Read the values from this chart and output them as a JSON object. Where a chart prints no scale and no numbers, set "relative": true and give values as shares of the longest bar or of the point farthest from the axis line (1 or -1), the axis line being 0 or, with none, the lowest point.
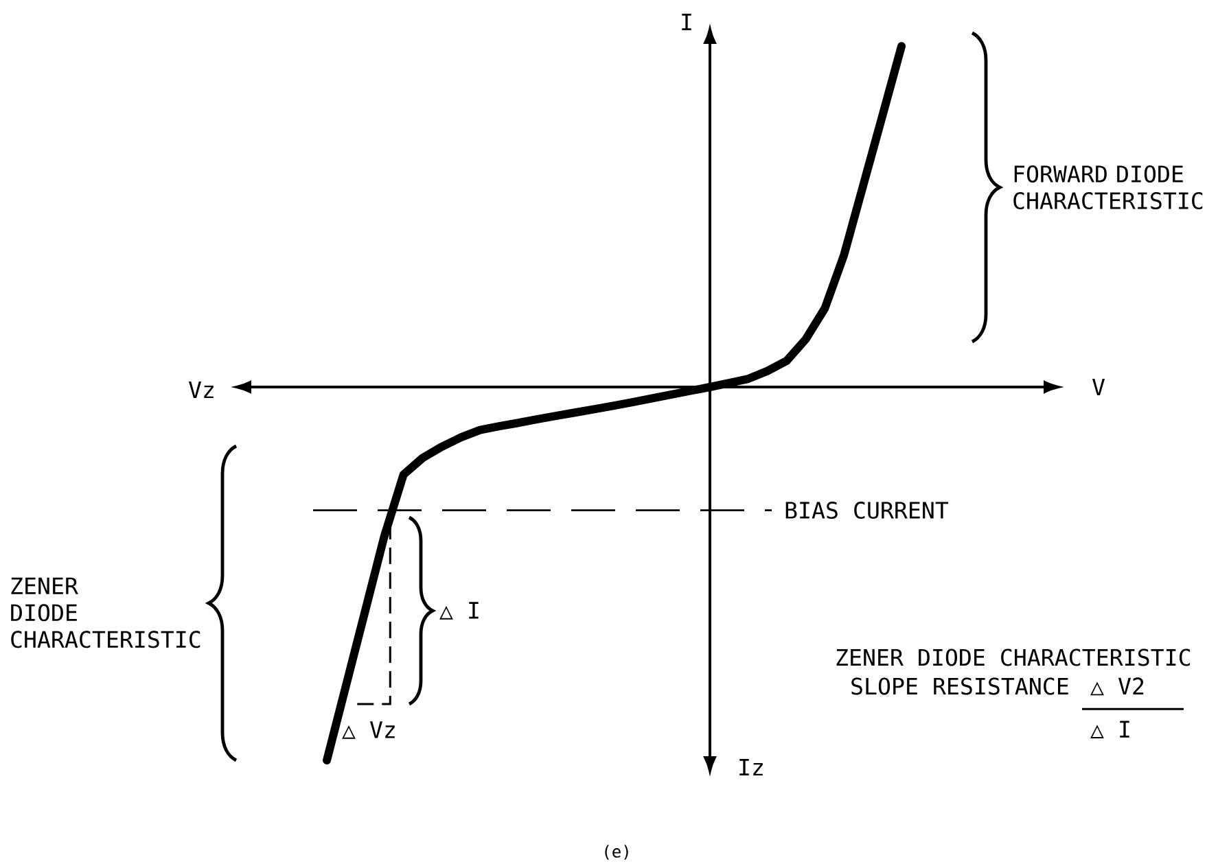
{
  "chart_data": {
    "type": "line",
    "relative": true,
    "ylabel": "I",
    "categories": [
      null,
      null,
      null,
      null,
      null,
      null,
      null,
      null,
      null,
      null,
      null,
      null,
      null,
      null,
      null,
      null,
      null,
      null,
      null,
      null,
      null,
      null,
      null,
      null,
      null,
      null,
      null,
      null,
      null,
      null,
      null
    ],
    "values": [
      -1.0,
      -0.8,
      -0.6,
      -0.4,
      -0.235,
      -0.19,
      -0.16,
      -0.135,
      -0.115,
      -0.105,
      -0.096,
      -0.086,
      -0.077,
      -0.068,
      -0.059,
      -0.05,
      -0.04,
      -0.03,
      -0.02,
      -0.01,
      0,
      0.011,
      0.022,
      0.043,
      0.07,
      0.128,
      0.211,
      0.354,
      0.54,
      0.726,
      0.913
    ],
    "color": "#000000",
    "ref_lines": [
      {
        "axis": "y",
        "value": -0.33,
        "label": "BIAS CURRENT",
        "line_style": "dashed"
      }
    ],
    "annotations": [
      "V",
      "Vz",
      "Iz",
      "FORWARD DIODE CHARACTERISTIC",
      "ZENER DIODE CHARACTERISTIC",
      "△ I",
      "△ Vz",
      "ZENER DIODE CHARACTERISTIC",
      "SLOPE RESISTANCE",
      "△ V2",
      "△ I",
      "(e)"
    ]
  }
}
